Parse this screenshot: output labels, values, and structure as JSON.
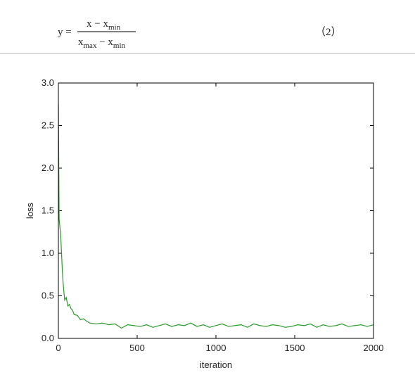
{
  "equation": {
    "lhs": "y =",
    "numerator": {
      "base": "x − x",
      "sub": "min"
    },
    "denominator": {
      "base1": "x",
      "sub1": "max",
      "mid": " − x",
      "sub2": "min"
    },
    "number": "（2）"
  },
  "chart_data": {
    "type": "line",
    "xlabel": "iteration",
    "ylabel": "loss",
    "x": [
      0,
      5,
      10,
      15,
      20,
      25,
      30,
      40,
      50,
      60,
      70,
      80,
      90,
      100,
      120,
      140,
      160,
      180,
      200,
      240,
      280,
      320,
      360,
      400,
      440,
      480,
      520,
      560,
      600,
      640,
      680,
      720,
      760,
      800,
      840,
      880,
      920,
      960,
      1000,
      1040,
      1080,
      1120,
      1160,
      1200,
      1240,
      1280,
      1320,
      1360,
      1400,
      1440,
      1480,
      1520,
      1560,
      1600,
      1640,
      1680,
      1720,
      1760,
      1800,
      1840,
      1880,
      1920,
      1960,
      2000
    ],
    "series": [
      {
        "name": "loss",
        "color": "#2a9a2a",
        "values": [
          2.75,
          1.4,
          1.3,
          1.2,
          1.0,
          0.8,
          0.65,
          0.45,
          0.48,
          0.38,
          0.4,
          0.35,
          0.33,
          0.28,
          0.27,
          0.22,
          0.23,
          0.2,
          0.18,
          0.17,
          0.18,
          0.16,
          0.17,
          0.12,
          0.16,
          0.15,
          0.14,
          0.16,
          0.13,
          0.15,
          0.17,
          0.14,
          0.16,
          0.15,
          0.18,
          0.14,
          0.16,
          0.13,
          0.15,
          0.17,
          0.14,
          0.15,
          0.16,
          0.13,
          0.17,
          0.15,
          0.14,
          0.16,
          0.15,
          0.13,
          0.14,
          0.16,
          0.15,
          0.17,
          0.13,
          0.16,
          0.14,
          0.15,
          0.17,
          0.14,
          0.15,
          0.16,
          0.14,
          0.16
        ]
      }
    ],
    "xlim": [
      0,
      2000
    ],
    "xticks": [
      0,
      500,
      1000,
      1500,
      2000
    ],
    "ylim": [
      0,
      3
    ],
    "yticks": [
      {
        "value": 0,
        "label": "0.0"
      },
      0.5,
      {
        "value": 1,
        "label": "1.0"
      },
      1.5,
      {
        "value": 2,
        "label": "2.0"
      },
      2.5,
      {
        "value": 3,
        "label": "3.0"
      }
    ],
    "grid": false
  }
}
